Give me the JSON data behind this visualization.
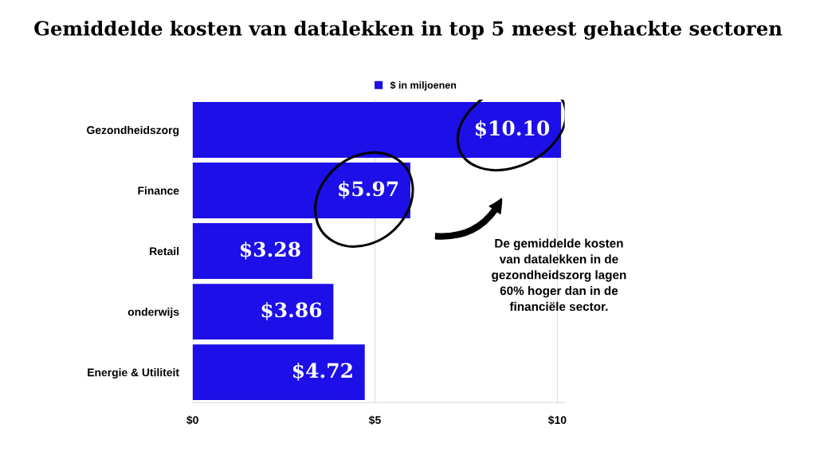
{
  "chart_data": {
    "type": "bar",
    "orientation": "horizontal",
    "title": "Gemiddelde kosten van datalekken in top 5 meest gehackte sectoren",
    "categories": [
      "Gezondheidszorg",
      "Finance",
      "Retail",
      "onderwijs",
      "Energie & Utiliteit"
    ],
    "series": [
      {
        "name": "$ in miljoenen",
        "color": "#1c0fe8",
        "values": [
          10.1,
          5.97,
          3.28,
          3.86,
          4.72
        ],
        "value_labels": [
          "$10.10",
          "$5.97",
          "$3.28",
          "$3.86",
          "$4.72"
        ]
      }
    ],
    "xlim": [
      0,
      10.2
    ],
    "xticks": [
      {
        "value": 0,
        "label": "$0"
      },
      {
        "value": 5,
        "label": "$5"
      },
      {
        "value": 10,
        "label": "$10"
      }
    ],
    "grid": "x",
    "legend": "top",
    "annotations": [
      "De gemiddelde kosten\nvan datalekken in de\ngezondheidszorg lagen\n60% hoger dan in de\nfinanciële sector."
    ]
  }
}
